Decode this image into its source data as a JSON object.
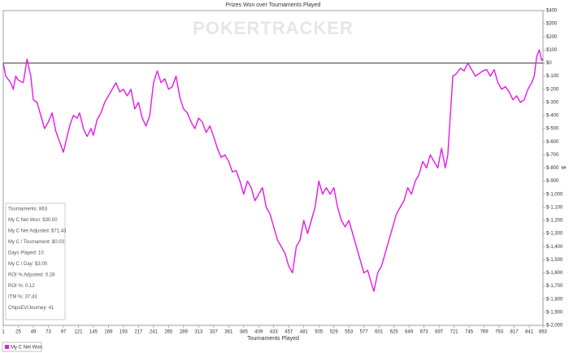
{
  "chart_data": {
    "type": "line",
    "title": "Prizes Won over Tournaments Played",
    "watermark": "POKERTRACKER",
    "x_label": "Tournaments Played",
    "y_label": "$",
    "x": [
      1,
      5,
      13,
      17,
      21,
      25,
      33,
      39,
      45,
      49,
      55,
      61,
      67,
      73,
      79,
      85,
      91,
      97,
      101,
      107,
      113,
      119,
      123,
      129,
      135,
      141,
      145,
      151,
      157,
      163,
      169,
      175,
      181,
      187,
      193,
      199,
      205,
      211,
      217,
      223,
      229,
      235,
      241,
      247,
      253,
      259,
      265,
      271,
      277,
      283,
      289,
      295,
      301,
      307,
      313,
      319,
      325,
      331,
      337,
      343,
      349,
      355,
      361,
      367,
      373,
      379,
      385,
      391,
      397,
      403,
      409,
      415,
      421,
      427,
      433,
      439,
      445,
      451,
      457,
      463,
      469,
      475,
      481,
      487,
      493,
      499,
      505,
      511,
      517,
      523,
      529,
      535,
      541,
      547,
      553,
      559,
      565,
      571,
      577,
      583,
      589,
      593,
      599,
      605,
      611,
      617,
      623,
      629,
      635,
      641,
      647,
      653,
      659,
      665,
      671,
      677,
      683,
      689,
      695,
      701,
      707,
      711,
      715,
      719,
      725,
      731,
      737,
      743,
      749,
      755,
      761,
      767,
      773,
      779,
      785,
      791,
      797,
      803,
      809,
      815,
      821,
      827,
      833,
      839,
      845,
      849,
      853,
      857,
      861,
      863
    ],
    "series": [
      {
        "name": "My C Net Won",
        "color": "#e619e6",
        "values": [
          0,
          -100,
          -150,
          -200,
          -100,
          -130,
          -150,
          30,
          -100,
          -280,
          -300,
          -400,
          -500,
          -450,
          -380,
          -520,
          -600,
          -680,
          -600,
          -480,
          -400,
          -420,
          -380,
          -500,
          -560,
          -500,
          -550,
          -430,
          -380,
          -300,
          -250,
          -200,
          -150,
          -220,
          -200,
          -250,
          -200,
          -350,
          -300,
          -420,
          -480,
          -400,
          -150,
          -60,
          -150,
          -120,
          -200,
          -180,
          -100,
          -260,
          -350,
          -380,
          -450,
          -500,
          -420,
          -450,
          -530,
          -480,
          -560,
          -650,
          -720,
          -700,
          -750,
          -830,
          -820,
          -900,
          -1000,
          -900,
          -950,
          -1050,
          -1000,
          -950,
          -1100,
          -1150,
          -1250,
          -1350,
          -1400,
          -1450,
          -1550,
          -1600,
          -1400,
          -1350,
          -1200,
          -1300,
          -1200,
          -1100,
          -900,
          -1000,
          -950,
          -1000,
          -950,
          -1100,
          -1200,
          -1250,
          -1200,
          -1300,
          -1400,
          -1500,
          -1600,
          -1580,
          -1680,
          -1740,
          -1600,
          -1550,
          -1450,
          -1350,
          -1250,
          -1150,
          -1100,
          -1050,
          -950,
          -1000,
          -900,
          -850,
          -750,
          -800,
          -700,
          -750,
          -800,
          -650,
          -800,
          -700,
          -400,
          -100,
          -80,
          -40,
          -60,
          0,
          -50,
          -100,
          -80,
          -60,
          -50,
          -100,
          -50,
          -150,
          -200,
          -180,
          -220,
          -280,
          -250,
          -300,
          -280,
          -200,
          -150,
          -100,
          50,
          100,
          20,
          30
        ]
      }
    ],
    "xlim": [
      1,
      863
    ],
    "xticks": [
      1,
      25,
      49,
      73,
      97,
      121,
      145,
      169,
      193,
      217,
      241,
      265,
      289,
      313,
      337,
      361,
      385,
      409,
      433,
      457,
      481,
      505,
      529,
      553,
      577,
      601,
      625,
      649,
      673,
      697,
      721,
      745,
      769,
      793,
      817,
      841,
      863
    ],
    "ylim": [
      -2000,
      400
    ],
    "yticks": [
      {
        "value": 400,
        "label": "$400"
      },
      {
        "value": 300,
        "label": "$300"
      },
      {
        "value": 200,
        "label": "$200"
      },
      {
        "value": 100,
        "label": "$100"
      },
      {
        "value": 0,
        "label": "$0"
      },
      {
        "value": -100,
        "label": "$-100"
      },
      {
        "value": -200,
        "label": "$-200"
      },
      {
        "value": -300,
        "label": "$-300"
      },
      {
        "value": -400,
        "label": "$-400"
      },
      {
        "value": -500,
        "label": "$-500"
      },
      {
        "value": -600,
        "label": "$-600"
      },
      {
        "value": -700,
        "label": "$-700"
      },
      {
        "value": -800,
        "label": "$-800"
      },
      {
        "value": -900,
        "label": "$-900"
      },
      {
        "value": -1000,
        "label": "$-1,000"
      },
      {
        "value": -1100,
        "label": "$-1,100"
      },
      {
        "value": -1200,
        "label": "$-1,200"
      },
      {
        "value": -1300,
        "label": "$-1,300"
      },
      {
        "value": -1400,
        "label": "$-1,400"
      },
      {
        "value": -1500,
        "label": "$-1,500"
      },
      {
        "value": -1600,
        "label": "$-1,600"
      },
      {
        "value": -1700,
        "label": "$-1,700"
      },
      {
        "value": -1800,
        "label": "$-1,800"
      },
      {
        "value": -1900,
        "label": "$-1,900"
      },
      {
        "value": -2000,
        "label": "$-2,000"
      }
    ],
    "zero_line": true,
    "stats": [
      "Tournaments: 863",
      "My C Net Won: $30.00",
      "My C Net Adjusted: $71.43",
      "My C / Tournament: $0.03",
      "Days Played: 10",
      "My C / Day: $3.00",
      "ROI % Adjusted: 0.28",
      "ROI %: 0.12",
      "ITM %: 37.43",
      "ChipsEV/Journey: 41"
    ],
    "legend": "bottom-left"
  }
}
